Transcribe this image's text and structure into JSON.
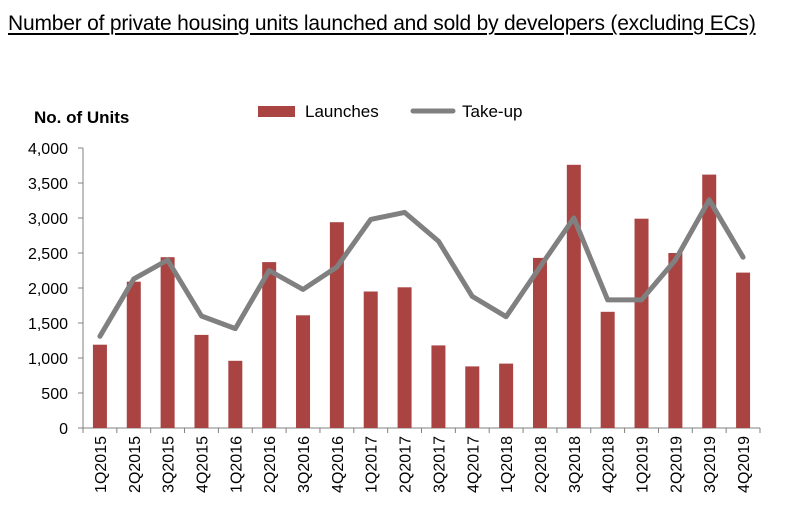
{
  "chart_data": {
    "type": "bar",
    "title": "Number of private housing units launched and sold by developers (excluding ECs)",
    "xlabel": "",
    "ylabel": "No. of Units",
    "ylim": [
      0,
      4000
    ],
    "yticks": [
      0,
      500,
      1000,
      1500,
      2000,
      2500,
      3000,
      3500,
      4000
    ],
    "ytick_labels": [
      "0",
      "500",
      "1,000",
      "1,500",
      "2,000",
      "2,500",
      "3,000",
      "3,500",
      "4,000"
    ],
    "grid": false,
    "legend_position": "top-center",
    "categories": [
      "1Q2015",
      "2Q2015",
      "3Q2015",
      "4Q2015",
      "1Q2016",
      "2Q2016",
      "3Q2016",
      "4Q2016",
      "1Q2017",
      "2Q2017",
      "3Q2017",
      "4Q2017",
      "1Q2018",
      "2Q2018",
      "3Q2018",
      "4Q2018",
      "1Q2019",
      "2Q2019",
      "3Q2019",
      "4Q2019"
    ],
    "series": [
      {
        "name": "Launches",
        "type": "bar",
        "color": "#a94442",
        "values": [
          1190,
          2090,
          2440,
          1330,
          960,
          2370,
          1610,
          2940,
          1950,
          2010,
          1180,
          880,
          920,
          2430,
          3760,
          1660,
          2990,
          2500,
          3620,
          2220
        ]
      },
      {
        "name": "Take-up",
        "type": "line",
        "color": "#808080",
        "values": [
          1310,
          2130,
          2400,
          1600,
          1420,
          2250,
          1980,
          2300,
          2980,
          3080,
          2670,
          1880,
          1590,
          2300,
          3000,
          1830,
          1830,
          2400,
          3260,
          2440
        ]
      }
    ]
  }
}
